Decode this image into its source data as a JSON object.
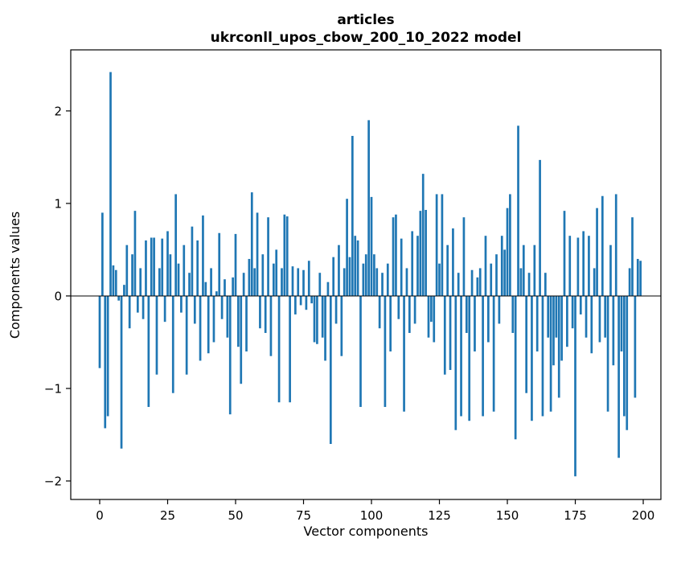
{
  "chart_data": {
    "type": "bar",
    "title": "articles",
    "subtitle": "ukrconll_upos_cbow_200_10_2022 model",
    "xlabel": "Vector components",
    "ylabel": "Components values",
    "bar_color": "#1f77b4",
    "axis_color": "#000000",
    "xlim": [
      -10.65,
      206.5
    ],
    "ylim": [
      -2.2,
      2.66
    ],
    "xticks": [
      0,
      25,
      50,
      75,
      100,
      125,
      150,
      175,
      200
    ],
    "xtick_labels": [
      "0",
      "25",
      "50",
      "75",
      "100",
      "125",
      "150",
      "175",
      "200"
    ],
    "yticks": [
      -2,
      -1,
      0,
      1,
      2
    ],
    "ytick_labels": [
      "−2",
      "−1",
      "0",
      "1",
      "2"
    ],
    "grid": false,
    "legend": "none",
    "values": [
      -0.78,
      0.9,
      -1.43,
      -1.3,
      2.42,
      0.33,
      0.28,
      -0.05,
      -1.65,
      0.12,
      0.55,
      -0.35,
      0.45,
      0.92,
      -0.18,
      0.3,
      -0.25,
      0.6,
      -1.2,
      0.63,
      0.63,
      -0.85,
      0.3,
      0.62,
      -0.28,
      0.7,
      0.45,
      -1.05,
      1.1,
      0.35,
      -0.18,
      0.55,
      -0.85,
      0.25,
      0.75,
      -0.3,
      0.6,
      -0.7,
      0.87,
      0.15,
      -0.62,
      0.3,
      -0.5,
      0.05,
      0.68,
      -0.25,
      0.18,
      -0.45,
      -1.28,
      0.2,
      0.67,
      -0.55,
      -0.95,
      0.25,
      -0.6,
      0.4,
      1.12,
      0.3,
      0.9,
      -0.35,
      0.45,
      -0.4,
      0.85,
      -0.65,
      0.35,
      0.5,
      -1.15,
      0.3,
      0.88,
      0.86,
      -1.15,
      0.32,
      -0.2,
      0.3,
      -0.1,
      0.28,
      -0.15,
      0.38,
      -0.08,
      -0.5,
      -0.52,
      0.25,
      -0.45,
      -0.7,
      0.15,
      -1.6,
      0.42,
      -0.3,
      0.55,
      -0.65,
      0.3,
      1.05,
      0.42,
      1.73,
      0.65,
      0.6,
      -1.2,
      0.35,
      0.45,
      1.9,
      1.07,
      0.45,
      0.3,
      -0.35,
      0.25,
      -1.2,
      0.35,
      -0.6,
      0.85,
      0.88,
      -0.25,
      0.62,
      -1.25,
      0.3,
      -0.4,
      0.7,
      -0.3,
      0.65,
      0.92,
      1.32,
      0.93,
      -0.45,
      -0.28,
      -0.5,
      1.1,
      0.35,
      1.1,
      -0.85,
      0.55,
      -0.8,
      0.73,
      -1.45,
      0.25,
      -1.3,
      0.85,
      -0.4,
      -1.35,
      0.28,
      -0.6,
      0.2,
      0.3,
      -1.3,
      0.65,
      -0.5,
      0.35,
      -1.25,
      0.45,
      -0.3,
      0.65,
      0.5,
      0.95,
      1.1,
      -0.4,
      -1.55,
      1.84,
      0.3,
      0.55,
      -1.05,
      0.25,
      -1.35,
      0.55,
      -0.6,
      1.47,
      -1.3,
      0.25,
      -0.45,
      -1.25,
      -0.75,
      -0.45,
      -1.1,
      -0.7,
      0.92,
      -0.55,
      0.65,
      -0.35,
      -1.95,
      0.63,
      -0.2,
      0.7,
      -0.45,
      0.65,
      -0.62,
      0.3,
      0.95,
      -0.5,
      1.08,
      -0.45,
      -1.25,
      0.55,
      -0.75,
      1.1,
      -1.75,
      -0.6,
      -1.3,
      -1.45,
      0.3,
      0.85,
      -1.1,
      0.4,
      0.38
    ]
  }
}
